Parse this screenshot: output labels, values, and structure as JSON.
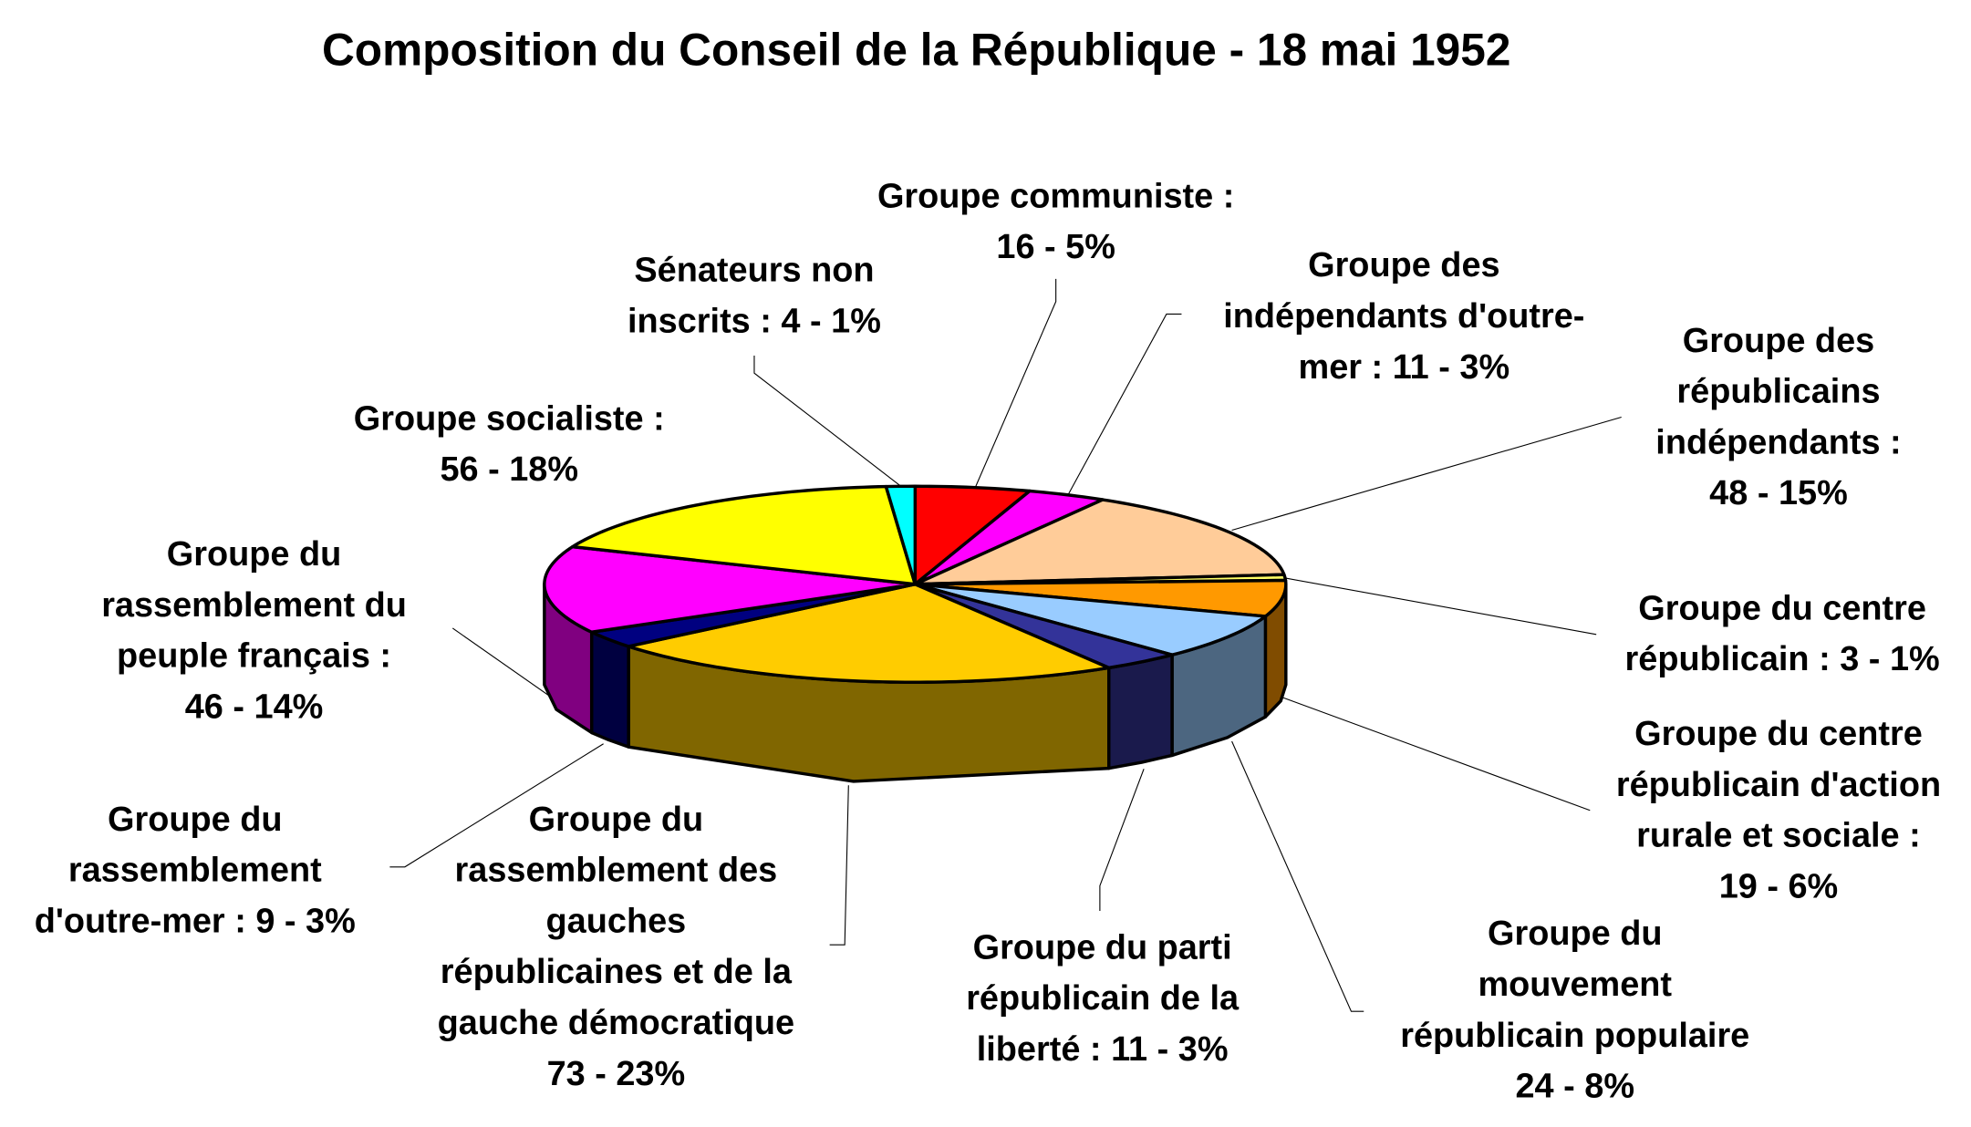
{
  "chart_data": {
    "type": "pie",
    "style": "3d",
    "title": "Composition du Conseil de la République - 18 mai 1952",
    "start": "top",
    "direction": "clockwise",
    "slices": [
      {
        "name": "Groupe communiste",
        "value": 16,
        "percent": 5,
        "color": "#FF0000",
        "side_color": "#800000",
        "label_lines": [
          "Groupe communiste :",
          "16 - 5%"
        ]
      },
      {
        "name": "Groupe des indépendants d'outre-mer",
        "value": 11,
        "percent": 3,
        "color": "#FF00FF",
        "side_color": "#800080",
        "label_lines": [
          "Groupe des",
          "indépendants d'outre-",
          "mer : 11 - 3%"
        ]
      },
      {
        "name": "Groupe des républicains indépendants",
        "value": 48,
        "percent": 15,
        "color": "#FFCC99",
        "side_color": "#80664C",
        "label_lines": [
          "Groupe des",
          "républicains",
          "indépendants :",
          "48 - 15%"
        ]
      },
      {
        "name": "Groupe du centre républicain",
        "value": 3,
        "percent": 1,
        "color": "#FFFF66",
        "side_color": "#808000",
        "label_lines": [
          "Groupe du centre",
          "républicain : 3 - 1%"
        ]
      },
      {
        "name": "Groupe du centre républicain d'action rurale et sociale",
        "value": 19,
        "percent": 6,
        "color": "#FF9900",
        "side_color": "#804C00",
        "label_lines": [
          "Groupe du centre",
          "républicain d'action",
          "rurale et sociale :",
          "19 - 6%"
        ]
      },
      {
        "name": "Groupe du mouvement républicain populaire",
        "value": 24,
        "percent": 8,
        "color": "#99CCFF",
        "side_color": "#4C6680",
        "label_lines": [
          "Groupe du",
          "mouvement",
          "républicain populaire",
          "24 - 8%"
        ]
      },
      {
        "name": "Groupe du parti républicain de la liberté",
        "value": 11,
        "percent": 3,
        "color": "#333399",
        "side_color": "#1A1A4C",
        "label_lines": [
          "Groupe du parti",
          "républicain de la",
          "liberté : 11 - 3%"
        ]
      },
      {
        "name": "Groupe du rassemblement des gauches républicaines et de la gauche démocratique",
        "value": 73,
        "percent": 23,
        "color": "#FFCC00",
        "side_color": "#806600",
        "label_lines": [
          "Groupe du",
          "rassemblement des",
          "gauches",
          "républicaines et de la",
          "gauche démocratique",
          "73 - 23%"
        ]
      },
      {
        "name": "Groupe du rassemblement d'outre-mer",
        "value": 9,
        "percent": 3,
        "color": "#000080",
        "side_color": "#000040",
        "label_lines": [
          "Groupe du",
          "rassemblement",
          "d'outre-mer : 9 - 3%"
        ]
      },
      {
        "name": "Groupe du rassemblement du peuple français",
        "value": 46,
        "percent": 14,
        "color": "#FF00FF",
        "side_color": "#800080",
        "label_lines": [
          "Groupe du",
          "rassemblement du",
          "peuple français :",
          "46 - 14%"
        ]
      },
      {
        "name": "Groupe socialiste",
        "value": 56,
        "percent": 18,
        "color": "#FFFF00",
        "side_color": "#808000",
        "label_lines": [
          "Groupe socialiste :",
          "56 - 18%"
        ]
      },
      {
        "name": "Sénateurs non inscrits",
        "value": 4,
        "percent": 1,
        "color": "#00FFFF",
        "side_color": "#008080",
        "label_lines": [
          "Sénateurs non",
          "inscrits : 4 - 1%"
        ]
      }
    ]
  }
}
